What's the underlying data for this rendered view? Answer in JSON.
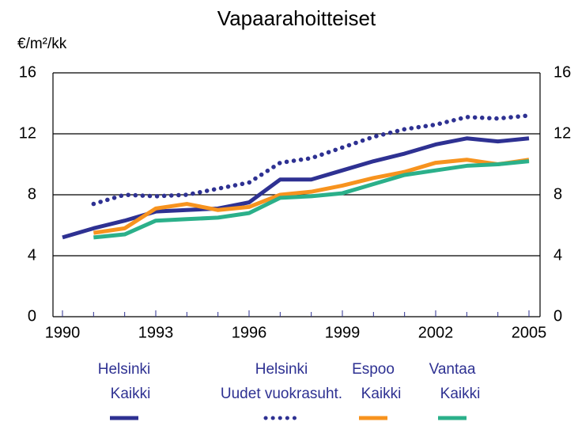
{
  "chart_data": {
    "type": "line",
    "title": "Vapaarahoitteiset",
    "y_label": "€/m²/kk",
    "x": [
      1990,
      1991,
      1992,
      1993,
      1994,
      1995,
      1996,
      1997,
      1998,
      1999,
      2000,
      2001,
      2002,
      2003,
      2004,
      2005
    ],
    "xlim": [
      1990,
      2005
    ],
    "xticks": [
      1990,
      1993,
      1996,
      1999,
      2002,
      2005
    ],
    "ylim": [
      0,
      16
    ],
    "yticks": [
      0,
      4,
      8,
      12,
      16
    ],
    "y2lim": [
      0,
      16
    ],
    "y2ticks": [
      0,
      4,
      8,
      12,
      16
    ],
    "grid": true,
    "series": [
      {
        "name": [
          "Helsinki",
          "Kaikki"
        ],
        "color": "#2e3192",
        "style": "solid",
        "values": [
          5.2,
          5.8,
          6.3,
          6.9,
          7.0,
          7.1,
          7.5,
          9.0,
          9.0,
          9.6,
          10.2,
          10.7,
          11.3,
          11.7,
          11.5,
          11.7
        ]
      },
      {
        "name": [
          "Helsinki",
          "Uudet vuokrasuht."
        ],
        "color": "#2e3192",
        "style": "dotted",
        "values": [
          null,
          7.4,
          8.0,
          7.9,
          8.0,
          8.4,
          8.8,
          10.1,
          10.4,
          11.1,
          11.8,
          12.3,
          12.6,
          13.1,
          13.0,
          13.2
        ]
      },
      {
        "name": [
          "Espoo",
          "Kaikki"
        ],
        "color": "#f7931e",
        "style": "solid",
        "values": [
          null,
          5.5,
          5.8,
          7.1,
          7.4,
          7.0,
          7.2,
          8.0,
          8.2,
          8.6,
          9.1,
          9.5,
          10.1,
          10.3,
          10.0,
          10.3
        ]
      },
      {
        "name": [
          "Vantaa",
          "Kaikki"
        ],
        "color": "#2bb08a",
        "style": "solid",
        "values": [
          null,
          5.2,
          5.4,
          6.3,
          6.4,
          6.5,
          6.8,
          7.8,
          7.9,
          8.1,
          8.7,
          9.3,
          9.6,
          9.9,
          10.0,
          10.2
        ]
      }
    ]
  }
}
